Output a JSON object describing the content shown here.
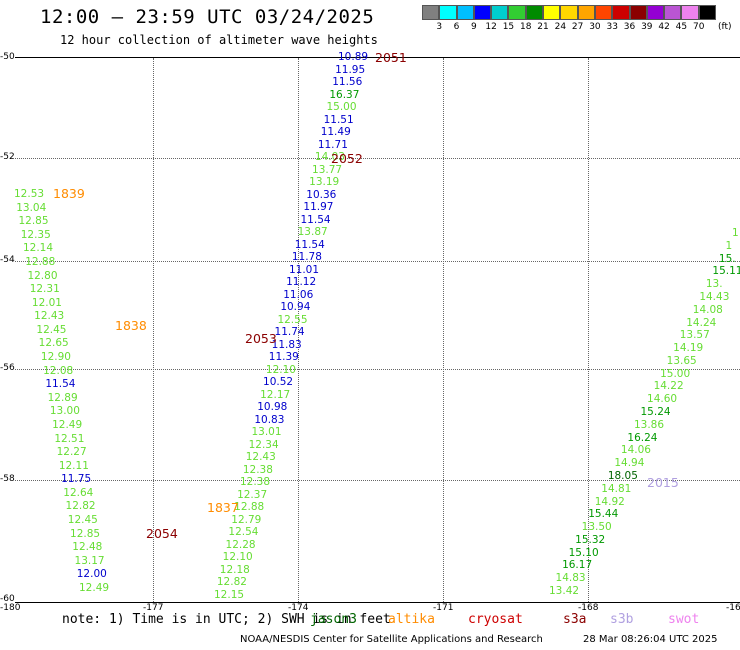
{
  "header": {
    "title": "12:00 – 23:59 UTC 03/24/2025",
    "subtitle": "12 hour collection of altimeter wave heights"
  },
  "legend": {
    "colors": [
      "#808080",
      "#00e5ee",
      "#00bfff",
      "#0000ff",
      "#00c5cd",
      "#00cd00",
      "#009000",
      "#ffff00",
      "#ffd700",
      "#ffa500",
      "#ff4500",
      "#cd0000",
      "#8b0000",
      "#ee82ee",
      "#a020f0",
      "#ee82ee",
      "#000000"
    ],
    "swatch_colors": [
      "#808080",
      "#00ffff",
      "#00bfff",
      "#0000ff",
      "#00cdcd",
      "#32cd32",
      "#008b00",
      "#ffff00",
      "#ffd700",
      "#ffa500",
      "#ff4500",
      "#cd0000",
      "#8b0000",
      "#9400d3",
      "#ba55d3",
      "#ee82ee",
      "#000000"
    ],
    "ticks": [
      "3",
      "6",
      "9",
      "12",
      "15",
      "18",
      "21",
      "24",
      "27",
      "30",
      "33",
      "36",
      "39",
      "42",
      "45",
      "70"
    ],
    "unit": "(ft)"
  },
  "axes": {
    "lat_labels": [
      "-50",
      "-52",
      "-54",
      "-56",
      "-58",
      "-60"
    ],
    "lon_labels": [
      "-180",
      "-177",
      "-174",
      "-171",
      "-168",
      "-16"
    ]
  },
  "colors": {
    "light_green": "#66dd33",
    "blue": "#0000cc",
    "dark_green": "#006400",
    "orange": "#ff8c00",
    "dark_red": "#8b0000",
    "lavender": "#b0a0e0"
  },
  "passes": [
    {
      "label": "2051",
      "color": "#8b0000"
    },
    {
      "label": "2052",
      "color": "#8b0000"
    },
    {
      "label": "1839",
      "color": "#ff8c00"
    },
    {
      "label": "1838",
      "color": "#ff8c00"
    },
    {
      "label": "2053",
      "color": "#8b0000"
    },
    {
      "label": "1837",
      "color": "#ff8c00"
    },
    {
      "label": "2054",
      "color": "#8b0000"
    },
    {
      "label": "2015",
      "color": "#b0a0e0"
    }
  ],
  "track_a": [
    {
      "v": "10.89",
      "c": "#0000cc"
    },
    {
      "v": "11.95",
      "c": "#0000cc"
    },
    {
      "v": "11.56",
      "c": "#0000cc"
    },
    {
      "v": "16.37",
      "c": "#009900"
    },
    {
      "v": "15.00",
      "c": "#66dd33"
    },
    {
      "v": "11.51",
      "c": "#0000cc"
    },
    {
      "v": "11.49",
      "c": "#0000cc"
    },
    {
      "v": "11.71",
      "c": "#0000cc"
    },
    {
      "v": "14.03",
      "c": "#66dd33"
    },
    {
      "v": "13.77",
      "c": "#66dd33"
    },
    {
      "v": "13.19",
      "c": "#66dd33"
    },
    {
      "v": "10.36",
      "c": "#0000cc"
    },
    {
      "v": "11.97",
      "c": "#0000cc"
    },
    {
      "v": "11.54",
      "c": "#0000cc"
    },
    {
      "v": "13.87",
      "c": "#66dd33"
    },
    {
      "v": "11.54",
      "c": "#0000cc"
    },
    {
      "v": "11.78",
      "c": "#0000cc"
    },
    {
      "v": "11.01",
      "c": "#0000cc"
    },
    {
      "v": "11.12",
      "c": "#0000cc"
    },
    {
      "v": "11.06",
      "c": "#0000cc"
    },
    {
      "v": "10.94",
      "c": "#0000cc"
    },
    {
      "v": "12.55",
      "c": "#66dd33"
    },
    {
      "v": "11.74",
      "c": "#0000cc"
    },
    {
      "v": "11.83",
      "c": "#0000cc"
    },
    {
      "v": "11.39",
      "c": "#0000cc"
    },
    {
      "v": "12.10",
      "c": "#66dd33"
    },
    {
      "v": "10.52",
      "c": "#0000cc"
    },
    {
      "v": "12.17",
      "c": "#66dd33"
    },
    {
      "v": "10.98",
      "c": "#0000cc"
    },
    {
      "v": "10.83",
      "c": "#0000cc"
    },
    {
      "v": "13.01",
      "c": "#66dd33"
    },
    {
      "v": "12.34",
      "c": "#66dd33"
    },
    {
      "v": "12.43",
      "c": "#66dd33"
    },
    {
      "v": "12.38",
      "c": "#66dd33"
    },
    {
      "v": "12.38",
      "c": "#66dd33"
    },
    {
      "v": "12.37",
      "c": "#66dd33"
    },
    {
      "v": "12.88",
      "c": "#66dd33"
    },
    {
      "v": "12.79",
      "c": "#66dd33"
    },
    {
      "v": "12.54",
      "c": "#66dd33"
    },
    {
      "v": "12.28",
      "c": "#66dd33"
    },
    {
      "v": "12.10",
      "c": "#66dd33"
    },
    {
      "v": "12.18",
      "c": "#66dd33"
    },
    {
      "v": "12.82",
      "c": "#66dd33"
    },
    {
      "v": "12.15",
      "c": "#66dd33"
    }
  ],
  "track_b": [
    {
      "v": "12.53",
      "c": "#66dd33"
    },
    {
      "v": "13.04",
      "c": "#66dd33"
    },
    {
      "v": "12.85",
      "c": "#66dd33"
    },
    {
      "v": "12.35",
      "c": "#66dd33"
    },
    {
      "v": "12.14",
      "c": "#66dd33"
    },
    {
      "v": "12.88",
      "c": "#66dd33"
    },
    {
      "v": "12.80",
      "c": "#66dd33"
    },
    {
      "v": "12.31",
      "c": "#66dd33"
    },
    {
      "v": "12.01",
      "c": "#66dd33"
    },
    {
      "v": "12.43",
      "c": "#66dd33"
    },
    {
      "v": "12.45",
      "c": "#66dd33"
    },
    {
      "v": "12.65",
      "c": "#66dd33"
    },
    {
      "v": "12.90",
      "c": "#66dd33"
    },
    {
      "v": "12.08",
      "c": "#66dd33"
    },
    {
      "v": "11.54",
      "c": "#0000cc"
    },
    {
      "v": "12.89",
      "c": "#66dd33"
    },
    {
      "v": "13.00",
      "c": "#66dd33"
    },
    {
      "v": "12.49",
      "c": "#66dd33"
    },
    {
      "v": "12.51",
      "c": "#66dd33"
    },
    {
      "v": "12.27",
      "c": "#66dd33"
    },
    {
      "v": "12.11",
      "c": "#66dd33"
    },
    {
      "v": "11.75",
      "c": "#0000cc"
    },
    {
      "v": "12.64",
      "c": "#66dd33"
    },
    {
      "v": "12.82",
      "c": "#66dd33"
    },
    {
      "v": "12.45",
      "c": "#66dd33"
    },
    {
      "v": "12.85",
      "c": "#66dd33"
    },
    {
      "v": "12.48",
      "c": "#66dd33"
    },
    {
      "v": "13.17",
      "c": "#66dd33"
    },
    {
      "v": "12.00",
      "c": "#0000cc"
    },
    {
      "v": "12.49",
      "c": "#66dd33"
    }
  ],
  "track_c": [
    {
      "v": "1",
      "c": "#66dd33"
    },
    {
      "v": "1",
      "c": "#66dd33"
    },
    {
      "v": "15.",
      "c": "#009900"
    },
    {
      "v": "15.11",
      "c": "#009900"
    },
    {
      "v": "13.",
      "c": "#66dd33"
    },
    {
      "v": "14.43",
      "c": "#66dd33"
    },
    {
      "v": "14.08",
      "c": "#66dd33"
    },
    {
      "v": "14.24",
      "c": "#66dd33"
    },
    {
      "v": "13.57",
      "c": "#66dd33"
    },
    {
      "v": "14.19",
      "c": "#66dd33"
    },
    {
      "v": "13.65",
      "c": "#66dd33"
    },
    {
      "v": "15.00",
      "c": "#66dd33"
    },
    {
      "v": "14.22",
      "c": "#66dd33"
    },
    {
      "v": "14.60",
      "c": "#66dd33"
    },
    {
      "v": "15.24",
      "c": "#009900"
    },
    {
      "v": "13.86",
      "c": "#66dd33"
    },
    {
      "v": "16.24",
      "c": "#009900"
    },
    {
      "v": "14.06",
      "c": "#66dd33"
    },
    {
      "v": "14.94",
      "c": "#66dd33"
    },
    {
      "v": "18.05",
      "c": "#006400"
    },
    {
      "v": "14.81",
      "c": "#66dd33"
    },
    {
      "v": "14.92",
      "c": "#66dd33"
    },
    {
      "v": "15.44",
      "c": "#009900"
    },
    {
      "v": "13.50",
      "c": "#66dd33"
    },
    {
      "v": "15.32",
      "c": "#009900"
    },
    {
      "v": "15.10",
      "c": "#009900"
    },
    {
      "v": "16.17",
      "c": "#009900"
    },
    {
      "v": "14.83",
      "c": "#66dd33"
    },
    {
      "v": "13.42",
      "c": "#66dd33"
    }
  ],
  "note": "note: 1) Time is in UTC; 2) SWH is in feet",
  "satellites": [
    {
      "name": "jason3",
      "color": "#006400"
    },
    {
      "name": "altika",
      "color": "#ff8c00"
    },
    {
      "name": "cryosat",
      "color": "#cd0000"
    },
    {
      "name": "s3a",
      "color": "#8b0000"
    },
    {
      "name": "s3b",
      "color": "#b0a0e0"
    },
    {
      "name": "swot",
      "color": "#ee82ee"
    }
  ],
  "footer": {
    "left": "NOAA/NESDIS Center for Satellite Applications and Research",
    "right": "28 Mar 08:26:04 UTC 2025"
  }
}
